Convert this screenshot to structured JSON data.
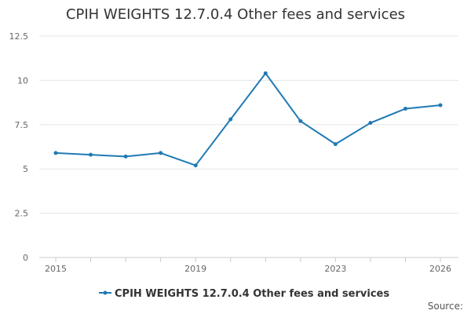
{
  "chart_data": {
    "type": "line",
    "title": "CPIH WEIGHTS 12.7.0.4 Other fees and services",
    "xlabel": "",
    "ylabel": "",
    "x": [
      2015,
      2016,
      2017,
      2018,
      2019,
      2020,
      2021,
      2022,
      2023,
      2024,
      2025,
      2026
    ],
    "x_tick_labels": [
      "2015",
      "2019",
      "2023",
      "2026"
    ],
    "y_tick_labels": [
      "0",
      "2.5",
      "5",
      "7.5",
      "10",
      "12.5"
    ],
    "ylim": [
      0,
      12.5
    ],
    "xlim": [
      2015,
      2026
    ],
    "grid": true,
    "legend_position": "bottom",
    "series": [
      {
        "name": "CPIH WEIGHTS 12.7.0.4 Other fees and services",
        "color": "#1f7ab4",
        "values": [
          5.9,
          5.8,
          5.7,
          5.9,
          5.2,
          7.8,
          10.4,
          7.7,
          6.4,
          7.6,
          8.4,
          8.6
        ]
      }
    ]
  },
  "source_label": "Source:"
}
